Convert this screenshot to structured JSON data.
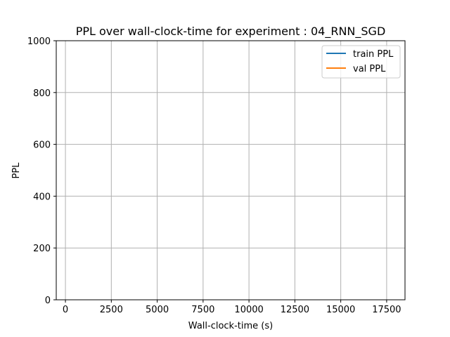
{
  "chart_data": {
    "type": "line",
    "title": "PPL over wall-clock-time for experiment : 04_RNN_SGD",
    "xlabel": "Wall-clock-time (s)",
    "ylabel": "PPL",
    "xlim": [
      -500,
      18500
    ],
    "ylim": [
      0,
      1000
    ],
    "xticks": [
      0,
      2500,
      5000,
      7500,
      10000,
      12500,
      15000,
      17500
    ],
    "xtick_labels": [
      "0",
      "2500",
      "5000",
      "7500",
      "10000",
      "12500",
      "15000",
      "17500"
    ],
    "yticks": [
      0,
      200,
      400,
      600,
      800,
      1000
    ],
    "ytick_labels": [
      "0",
      "200",
      "400",
      "600",
      "800",
      "1000"
    ],
    "grid": true,
    "legend_position": "top-right",
    "series": [
      {
        "name": "train PPL",
        "color": "#1f77b4",
        "x": [],
        "y": []
      },
      {
        "name": "val PPL",
        "color": "#ff7f0e",
        "x": [],
        "y": []
      }
    ]
  }
}
